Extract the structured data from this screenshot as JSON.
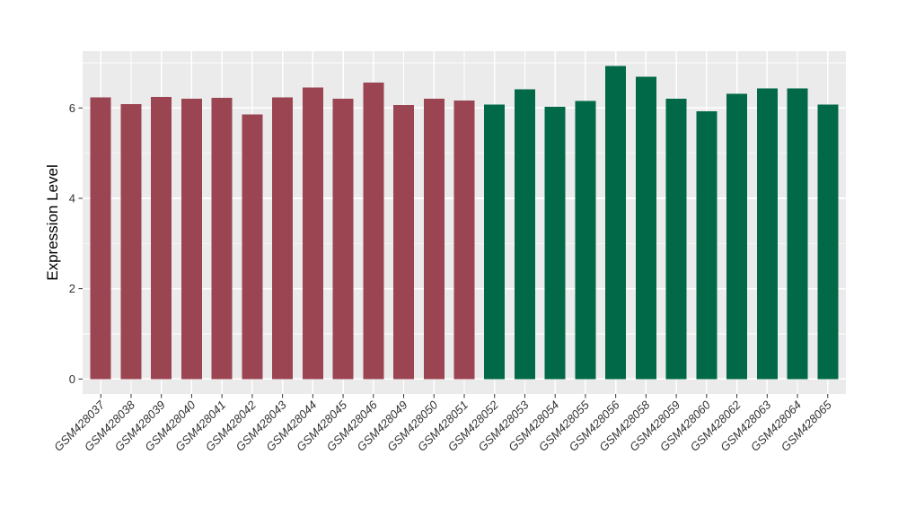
{
  "figure": {
    "background": "#FFFFFF",
    "panel_background": "#EBEBEB",
    "gridline_color": "#FFFFFF",
    "tick_color": "#333333",
    "axis_text_color": "#333333",
    "axis_title_color": "#000000"
  },
  "chart_data": {
    "type": "bar",
    "title": "",
    "xlabel": "",
    "ylabel": "Expression Level",
    "ylim": [
      0,
      7.3
    ],
    "yticks": [
      0,
      2,
      4,
      6
    ],
    "yticks_minor": [
      1,
      3,
      5,
      7
    ],
    "grid": true,
    "legend_position": "none",
    "x_tick_rotation_deg": 45,
    "categories": [
      "GSM428037",
      "GSM428038",
      "GSM428039",
      "GSM428040",
      "GSM428041",
      "GSM428042",
      "GSM428043",
      "GSM428044",
      "GSM428045",
      "GSM428046",
      "GSM428049",
      "GSM428050",
      "GSM428051",
      "GSM428052",
      "GSM428053",
      "GSM428054",
      "GSM428055",
      "GSM428056",
      "GSM428058",
      "GSM428059",
      "GSM428060",
      "GSM428062",
      "GSM428063",
      "GSM428064",
      "GSM428065"
    ],
    "values": [
      6.23,
      6.09,
      6.24,
      6.21,
      6.22,
      5.86,
      6.23,
      6.45,
      6.21,
      6.56,
      6.07,
      6.21,
      6.17,
      6.08,
      6.41,
      6.03,
      6.16,
      6.93,
      6.69,
      6.21,
      5.93,
      6.31,
      6.43,
      6.43,
      6.08
    ],
    "bar_groups": [
      "red",
      "red",
      "red",
      "red",
      "red",
      "red",
      "red",
      "red",
      "red",
      "red",
      "red",
      "red",
      "red",
      "green",
      "green",
      "green",
      "green",
      "green",
      "green",
      "green",
      "green",
      "green",
      "green",
      "green",
      "green"
    ],
    "group_colors": {
      "red": "#9B4552",
      "green": "#016948"
    }
  }
}
